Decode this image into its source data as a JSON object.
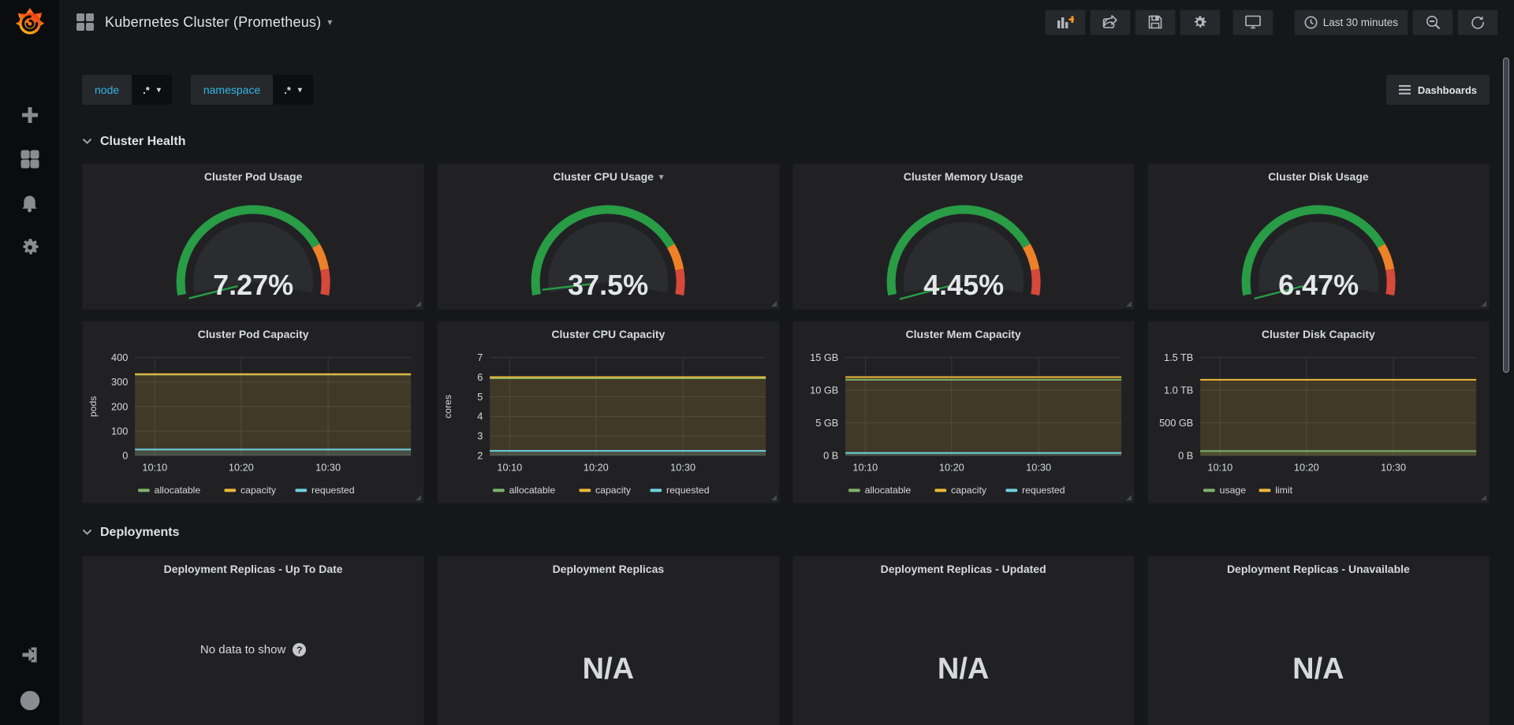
{
  "colors": {
    "gauge_green": "#299c46",
    "gauge_orange": "#ED8128",
    "gauge_red": "#D6493B",
    "series_green": "#7EB26D",
    "series_yellow": "#EAB839",
    "series_cyan": "#6ED0E0",
    "variable_accent": "#33B5E5",
    "panel_bg": "#212124",
    "page_bg": "#161719"
  },
  "sidebar": {
    "icons": [
      "grafana-logo",
      "plus-icon",
      "dashboards-grid-icon",
      "alerting-bell-icon",
      "configuration-gear-icon",
      "sign-in-icon",
      "help-icon"
    ]
  },
  "header": {
    "title": "Kubernetes Cluster (Prometheus)",
    "toolbar_icons": [
      "add-panel-icon",
      "share-icon",
      "save-icon",
      "settings-gear-icon",
      "cycle-view-icon",
      "clock-icon",
      "zoom-out-icon",
      "refresh-icon"
    ],
    "time_range": "Last 30 minutes"
  },
  "variables": [
    {
      "label": "node",
      "value": ".*"
    },
    {
      "label": "namespace",
      "value": ".*"
    }
  ],
  "dashboards_button_label": "Dashboards",
  "sections": [
    {
      "title": "Cluster Health"
    },
    {
      "title": "Deployments"
    }
  ],
  "gauges": [
    {
      "title": "Cluster Pod Usage",
      "value": "7.27%",
      "pct": 7.27,
      "thresholds_pct": [
        80,
        90
      ]
    },
    {
      "title": "Cluster CPU Usage",
      "value": "37.5%",
      "pct": 37.5,
      "thresholds_pct": [
        80,
        90
      ]
    },
    {
      "title": "Cluster Memory Usage",
      "value": "4.45%",
      "pct": 4.45,
      "thresholds_pct": [
        80,
        90
      ]
    },
    {
      "title": "Cluster Disk Usage",
      "value": "6.47%",
      "pct": 6.47,
      "thresholds_pct": [
        80,
        90
      ]
    }
  ],
  "chart_data": [
    {
      "type": "line",
      "title": "Cluster Pod Capacity",
      "ylabel": "pods",
      "x": [
        "10:10",
        "10:20",
        "10:30"
      ],
      "ylim": [
        0,
        400
      ],
      "yticks": [
        0,
        100,
        200,
        300,
        400
      ],
      "ytick_labels": [
        "0",
        "100",
        "200",
        "300",
        "400"
      ],
      "legend_position": "bottom",
      "grid": true,
      "series": [
        {
          "name": "allocatable",
          "color": "#7EB26D",
          "value": 330,
          "fill": false
        },
        {
          "name": "capacity",
          "color": "#EAB839",
          "value": 332,
          "fill": true
        },
        {
          "name": "requested",
          "color": "#6ED0E0",
          "value": 25,
          "fill": true
        }
      ]
    },
    {
      "type": "line",
      "title": "Cluster CPU Capacity",
      "ylabel": "cores",
      "x": [
        "10:10",
        "10:20",
        "10:30"
      ],
      "ylim": [
        2,
        7
      ],
      "yticks": [
        2,
        3,
        4,
        5,
        6,
        7
      ],
      "ytick_labels": [
        "2",
        "3",
        "4",
        "5",
        "6",
        "7"
      ],
      "legend_position": "bottom",
      "grid": true,
      "series": [
        {
          "name": "allocatable",
          "color": "#7EB26D",
          "value": 5.94,
          "fill": false
        },
        {
          "name": "capacity",
          "color": "#EAB839",
          "value": 6,
          "fill": true
        },
        {
          "name": "requested",
          "color": "#6ED0E0",
          "value": 2.24,
          "fill": true
        }
      ]
    },
    {
      "type": "line",
      "title": "Cluster Mem Capacity",
      "ylabel": "",
      "x": [
        "10:10",
        "10:20",
        "10:30"
      ],
      "ylim": [
        0,
        15
      ],
      "yticks": [
        0,
        5,
        10,
        15
      ],
      "ytick_labels": [
        "0 B",
        "5 GB",
        "10 GB",
        "15 GB"
      ],
      "legend_position": "bottom",
      "grid": true,
      "series": [
        {
          "name": "allocatable",
          "color": "#7EB26D",
          "value": 11.6,
          "fill": false
        },
        {
          "name": "capacity",
          "color": "#EAB839",
          "value": 12,
          "fill": true
        },
        {
          "name": "requested",
          "color": "#6ED0E0",
          "value": 0.4,
          "fill": true
        }
      ]
    },
    {
      "type": "line",
      "title": "Cluster Disk Capacity",
      "ylabel": "",
      "x": [
        "10:10",
        "10:20",
        "10:30"
      ],
      "ylim": [
        0,
        1.5
      ],
      "yticks": [
        0,
        0.5,
        1.0,
        1.5
      ],
      "ytick_labels": [
        "0 B",
        "500 GB",
        "1.0 TB",
        "1.5 TB"
      ],
      "legend_position": "bottom",
      "grid": true,
      "series": [
        {
          "name": "usage",
          "color": "#7EB26D",
          "value": 0.07,
          "fill": true
        },
        {
          "name": "limit",
          "color": "#EAB839",
          "value": 1.16,
          "fill": true
        }
      ]
    }
  ],
  "deployments": [
    {
      "title": "Deployment Replicas - Up To Date",
      "body": "No data to show",
      "kind": "nodata"
    },
    {
      "title": "Deployment Replicas",
      "body": "N/A",
      "kind": "value"
    },
    {
      "title": "Deployment Replicas - Updated",
      "body": "N/A",
      "kind": "value"
    },
    {
      "title": "Deployment Replicas - Unavailable",
      "body": "N/A",
      "kind": "value"
    }
  ],
  "misc": {
    "help_glyph": "?",
    "caret_glyph": "▾"
  }
}
